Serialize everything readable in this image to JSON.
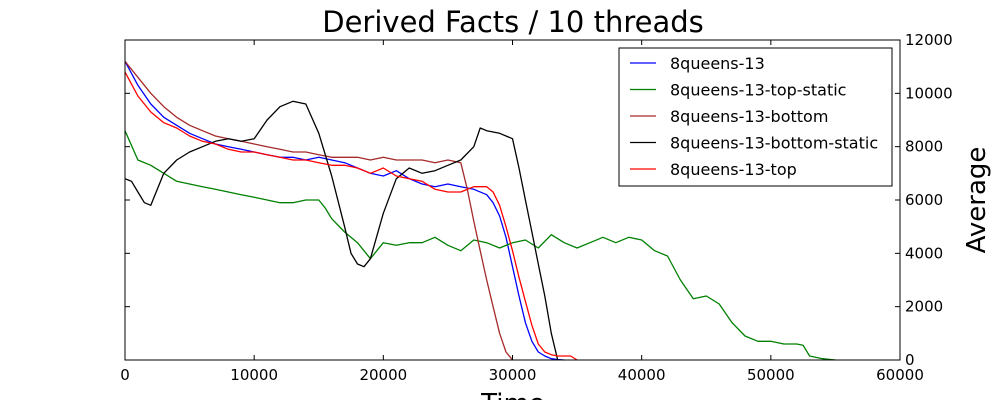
{
  "chart_data": {
    "type": "line",
    "title": "Derived Facts / 10 threads",
    "xlabel": "Time",
    "ylabel": "Average",
    "xlim": [
      0,
      60000
    ],
    "ylim": [
      0,
      12000
    ],
    "y_axis_side": "right",
    "grid": false,
    "legend_position": "top-right",
    "x_ticks": [
      0,
      10000,
      20000,
      30000,
      40000,
      50000,
      60000
    ],
    "y_ticks": [
      0,
      2000,
      4000,
      6000,
      8000,
      10000,
      12000
    ],
    "x_tick_labels": [
      "0",
      "10000",
      "20000",
      "30000",
      "40000",
      "50000",
      "60000"
    ],
    "y_tick_labels": [
      "0",
      "2000",
      "4000",
      "6000",
      "8000",
      "10000",
      "12000"
    ],
    "series": [
      {
        "name": "8queens-13",
        "color": "#0000ff",
        "x": [
          0,
          1000,
          2000,
          3000,
          4000,
          5000,
          6000,
          7000,
          8000,
          9000,
          10000,
          11000,
          12000,
          13000,
          14000,
          15000,
          16000,
          17000,
          18000,
          19000,
          20000,
          21000,
          22000,
          23000,
          24000,
          25000,
          26000,
          27000,
          28000,
          28500,
          29000,
          29500,
          30000,
          30500,
          31000,
          31500,
          32000,
          32500,
          33000,
          33500,
          34000
        ],
        "y": [
          11200,
          10300,
          9600,
          9100,
          8800,
          8500,
          8300,
          8100,
          8000,
          7900,
          7800,
          7700,
          7600,
          7600,
          7500,
          7600,
          7500,
          7400,
          7200,
          7000,
          6900,
          7100,
          6800,
          6600,
          6500,
          6600,
          6500,
          6400,
          6200,
          5900,
          5400,
          4600,
          3500,
          2400,
          1400,
          700,
          300,
          150,
          50,
          20,
          0
        ]
      },
      {
        "name": "8queens-13-top-static",
        "color": "#008000",
        "x": [
          0,
          1000,
          2000,
          3000,
          4000,
          5000,
          6000,
          7000,
          8000,
          9000,
          10000,
          11000,
          12000,
          13000,
          14000,
          15000,
          15500,
          16000,
          17000,
          18000,
          19000,
          20000,
          21000,
          22000,
          23000,
          24000,
          25000,
          26000,
          27000,
          28000,
          29000,
          30000,
          31000,
          32000,
          33000,
          34000,
          35000,
          36000,
          37000,
          38000,
          39000,
          40000,
          41000,
          42000,
          43000,
          44000,
          45000,
          46000,
          47000,
          48000,
          49000,
          50000,
          51000,
          52000,
          52500,
          53000,
          54000,
          55000
        ],
        "y": [
          8600,
          7500,
          7300,
          7000,
          6700,
          6600,
          6500,
          6400,
          6300,
          6200,
          6100,
          6000,
          5900,
          5900,
          6000,
          6000,
          5700,
          5300,
          4800,
          4400,
          3800,
          4400,
          4300,
          4400,
          4400,
          4600,
          4300,
          4100,
          4500,
          4400,
          4200,
          4400,
          4500,
          4200,
          4700,
          4400,
          4200,
          4400,
          4600,
          4400,
          4600,
          4500,
          4100,
          3900,
          3000,
          2300,
          2400,
          2100,
          1400,
          900,
          700,
          700,
          600,
          600,
          550,
          150,
          50,
          0
        ]
      },
      {
        "name": "8queens-13-bottom",
        "color": "#a52a2a",
        "x": [
          0,
          1000,
          2000,
          3000,
          4000,
          5000,
          6000,
          7000,
          8000,
          9000,
          10000,
          11000,
          12000,
          13000,
          14000,
          15000,
          16000,
          17000,
          18000,
          19000,
          20000,
          21000,
          22000,
          23000,
          24000,
          25000,
          26000,
          26500,
          27000,
          27500,
          28000,
          28500,
          29000,
          29500,
          30000
        ],
        "y": [
          11200,
          10600,
          10000,
          9500,
          9100,
          8800,
          8600,
          8400,
          8300,
          8200,
          8100,
          8000,
          7900,
          7800,
          7800,
          7700,
          7600,
          7600,
          7600,
          7500,
          7600,
          7500,
          7500,
          7500,
          7400,
          7500,
          7400,
          6400,
          5200,
          4100,
          3000,
          2000,
          1000,
          300,
          0
        ]
      },
      {
        "name": "8queens-13-bottom-static",
        "color": "#000000",
        "x": [
          0,
          500,
          1000,
          1500,
          2000,
          3000,
          4000,
          5000,
          6000,
          7000,
          8000,
          9000,
          10000,
          11000,
          12000,
          13000,
          14000,
          15000,
          16000,
          17000,
          17500,
          18000,
          18500,
          19000,
          20000,
          21000,
          22000,
          23000,
          24000,
          25000,
          26000,
          27000,
          27500,
          28000,
          29000,
          30000,
          30500,
          31000,
          31500,
          32000,
          32500,
          33000,
          33500
        ],
        "y": [
          6800,
          6700,
          6300,
          5900,
          5800,
          7000,
          7500,
          7800,
          8000,
          8200,
          8300,
          8200,
          8300,
          9000,
          9500,
          9700,
          9600,
          8500,
          6900,
          5000,
          4000,
          3600,
          3500,
          3800,
          5500,
          6800,
          7200,
          7000,
          7100,
          7300,
          7500,
          8000,
          8700,
          8600,
          8500,
          8300,
          7200,
          6000,
          4800,
          3600,
          2400,
          1000,
          0
        ]
      },
      {
        "name": "8queens-13-top",
        "color": "#ff0000",
        "x": [
          0,
          1000,
          2000,
          3000,
          4000,
          5000,
          6000,
          7000,
          8000,
          9000,
          10000,
          11000,
          12000,
          13000,
          14000,
          15000,
          16000,
          17000,
          18000,
          19000,
          20000,
          21000,
          22000,
          23000,
          24000,
          25000,
          26000,
          27000,
          28000,
          28500,
          29000,
          29500,
          30000,
          30500,
          31000,
          31500,
          32000,
          32500,
          33000,
          33500,
          34000,
          34500,
          35000
        ],
        "y": [
          10800,
          9900,
          9300,
          8900,
          8700,
          8400,
          8200,
          8100,
          7900,
          7800,
          7800,
          7700,
          7600,
          7500,
          7500,
          7400,
          7300,
          7300,
          7200,
          7000,
          7200,
          6900,
          6800,
          6700,
          6400,
          6300,
          6300,
          6500,
          6500,
          6300,
          5800,
          5000,
          4100,
          3100,
          2200,
          1300,
          600,
          300,
          200,
          150,
          150,
          150,
          0
        ]
      }
    ]
  }
}
